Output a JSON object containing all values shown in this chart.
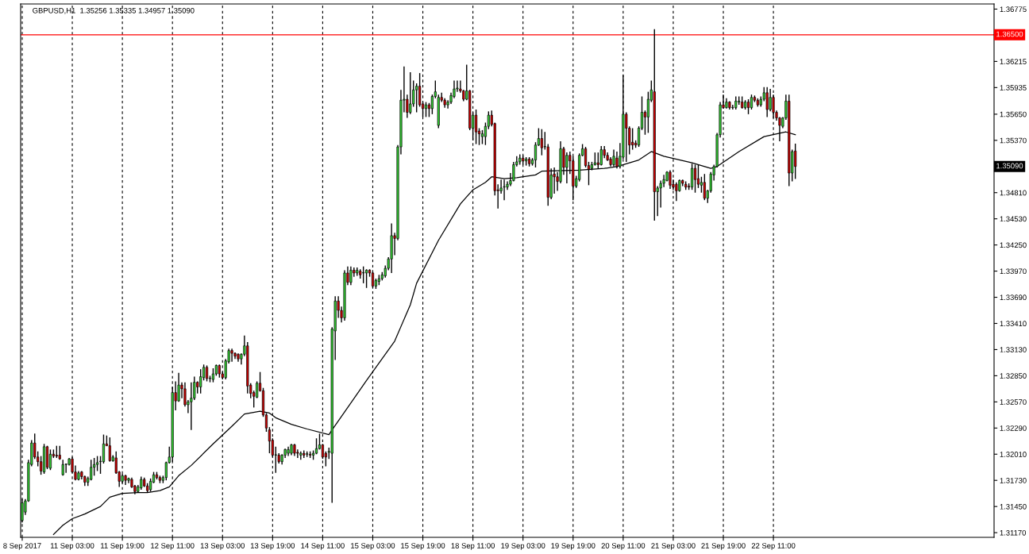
{
  "chart_data": {
    "type": "candlestick",
    "title": "GBPUSD,H1  1.35256 1.35335 1.34957 1.35090",
    "categories": [
      "8 Sep 2017",
      null,
      null,
      null,
      null,
      null,
      null,
      null,
      null,
      null,
      null,
      null,
      null,
      null,
      null,
      null,
      "11 Sep 03:00",
      null,
      null,
      null,
      null,
      null,
      null,
      null,
      null,
      null,
      null,
      null,
      null,
      null,
      null,
      null,
      "11 Sep 19:00",
      null,
      null,
      null,
      null,
      null,
      null,
      null,
      null,
      null,
      null,
      null,
      null,
      null,
      null,
      null,
      "12 Sep 11:00",
      null,
      null,
      null,
      null,
      null,
      null,
      null,
      null,
      null,
      null,
      null,
      null,
      null,
      null,
      null,
      "13 Sep 03:00",
      null,
      null,
      null,
      null,
      null,
      null,
      null,
      null,
      null,
      null,
      null,
      null,
      null,
      null,
      null,
      "13 Sep 19:00",
      null,
      null,
      null,
      null,
      null,
      null,
      null,
      null,
      null,
      null,
      null,
      null,
      null,
      null,
      null,
      "14 Sep 11:00",
      null,
      null,
      null,
      null,
      null,
      null,
      null,
      null,
      null,
      null,
      null,
      null,
      null,
      null,
      null,
      "15 Sep 03:00",
      null,
      null,
      null,
      null,
      null,
      null,
      null,
      null,
      null,
      null,
      null,
      null,
      null,
      null,
      null,
      "15 Sep 19:00",
      null,
      null,
      null,
      null,
      null,
      null,
      null,
      null,
      null,
      null,
      null,
      null,
      null,
      null,
      null,
      "18 Sep 11:00",
      null,
      null,
      null,
      null,
      null,
      null,
      null,
      null,
      null,
      null,
      null,
      null,
      null,
      null,
      null,
      "19 Sep 03:00",
      null,
      null,
      null,
      null,
      null,
      null,
      null,
      null,
      null,
      null,
      null,
      null,
      null,
      null,
      null,
      "19 Sep 19:00",
      null,
      null,
      null,
      null,
      null,
      null,
      null,
      null,
      null,
      null,
      null,
      null,
      null,
      null,
      null,
      "20 Sep 11:00",
      null,
      null,
      null,
      null,
      null,
      null,
      null,
      null,
      null,
      null,
      null,
      null,
      null,
      null,
      null,
      "21 Sep 03:00",
      null,
      null,
      null,
      null,
      null,
      null,
      null,
      null,
      null,
      null,
      null,
      null,
      null,
      null,
      null,
      "21 Sep 19:00",
      null,
      null,
      null,
      null,
      null,
      null,
      null,
      null,
      null,
      null,
      null,
      null,
      null,
      null,
      null,
      "22 Sep 11:00",
      null,
      null,
      null,
      null,
      null,
      null,
      null,
      null,
      null,
      null,
      null,
      null,
      null,
      null,
      null,
      null,
      null,
      null,
      null,
      null,
      null,
      null,
      null,
      null,
      null,
      null,
      null,
      null,
      null,
      null,
      null,
      null,
      null,
      null,
      null,
      null,
      null,
      null,
      null,
      null,
      null,
      null,
      null,
      null,
      null,
      null,
      null,
      null,
      null,
      null,
      null,
      null,
      null,
      null,
      null,
      null,
      null,
      null,
      null,
      null,
      null,
      null,
      null,
      null,
      null,
      null,
      null,
      null,
      null,
      null
    ],
    "ohlc": [
      [
        1.313,
        1.3153,
        1.3128,
        1.3149
      ],
      [
        1.3139,
        1.3153,
        1.3136,
        1.3151
      ],
      [
        1.3151,
        1.3195,
        1.315,
        1.3192
      ],
      [
        1.319,
        1.3216,
        1.3188,
        1.3213
      ],
      [
        1.3213,
        1.3223,
        1.3196,
        1.3198
      ],
      [
        1.3198,
        1.3204,
        1.3188,
        1.3193
      ],
      [
        1.3193,
        1.3199,
        1.3179,
        1.3183
      ],
      [
        1.3182,
        1.3212,
        1.318,
        1.3209
      ],
      [
        1.3209,
        1.321,
        1.3185,
        1.3187
      ],
      [
        1.3186,
        1.3206,
        1.3184,
        1.3201
      ],
      [
        1.3201,
        1.3206,
        1.3197,
        1.3199
      ],
      [
        1.32,
        1.321,
        1.3197,
        1.3199
      ],
      [
        1.32,
        1.321,
        1.3195,
        1.3196
      ],
      [
        1.3179,
        1.3195,
        1.3178,
        1.319
      ],
      [
        1.319,
        1.3191,
        1.3181,
        1.319
      ],
      [
        1.319,
        1.3197,
        1.3189,
        1.3196
      ],
      [
        1.3196,
        1.3198,
        1.3181,
        1.3182
      ],
      [
        1.3182,
        1.3189,
        1.3173,
        1.3174
      ],
      [
        1.3174,
        1.3183,
        1.3173,
        1.3181
      ],
      [
        1.3182,
        1.3183,
        1.3174,
        1.3177
      ],
      [
        1.3177,
        1.3178,
        1.3167,
        1.3171
      ],
      [
        1.3171,
        1.3177,
        1.3167,
        1.3175
      ],
      [
        1.3174,
        1.3195,
        1.3173,
        1.3187
      ],
      [
        1.3187,
        1.3197,
        1.3178,
        1.319
      ],
      [
        1.319,
        1.3199,
        1.3183,
        1.3192
      ],
      [
        1.3193,
        1.3199,
        1.318,
        1.3193
      ],
      [
        1.3193,
        1.3222,
        1.3191,
        1.3212
      ],
      [
        1.3212,
        1.3221,
        1.321,
        1.321
      ],
      [
        1.321,
        1.3219,
        1.3193,
        1.3194
      ],
      [
        1.3194,
        1.32,
        1.3193,
        1.3198
      ],
      [
        1.3197,
        1.3204,
        1.318,
        1.3181
      ],
      [
        1.3182,
        1.3183,
        1.3166,
        1.3172
      ],
      [
        1.3172,
        1.318,
        1.317,
        1.3178
      ],
      [
        1.3178,
        1.3179,
        1.3168,
        1.3173
      ],
      [
        1.3173,
        1.3176,
        1.317,
        1.3175
      ],
      [
        1.3174,
        1.3176,
        1.3165,
        1.3166
      ],
      [
        1.3167,
        1.3168,
        1.3158,
        1.3161
      ],
      [
        1.3161,
        1.3168,
        1.316,
        1.3166
      ],
      [
        1.3165,
        1.3177,
        1.3163,
        1.3174
      ],
      [
        1.3174,
        1.3176,
        1.3166,
        1.3167
      ],
      [
        1.3167,
        1.317,
        1.316,
        1.3162
      ],
      [
        1.3163,
        1.3175,
        1.3161,
        1.3172
      ],
      [
        1.3171,
        1.3182,
        1.317,
        1.3179
      ],
      [
        1.3179,
        1.3182,
        1.3174,
        1.3176
      ],
      [
        1.3176,
        1.3178,
        1.317,
        1.3173
      ],
      [
        1.3173,
        1.3178,
        1.317,
        1.3176
      ],
      [
        1.3176,
        1.3193,
        1.3173,
        1.3192
      ],
      [
        1.3192,
        1.3209,
        1.3191,
        1.3198
      ],
      [
        1.3198,
        1.3273,
        1.3193,
        1.3267
      ],
      [
        1.3267,
        1.3279,
        1.3248,
        1.3258
      ],
      [
        1.3258,
        1.3288,
        1.3257,
        1.3275
      ],
      [
        1.3275,
        1.3278,
        1.3261,
        1.3271
      ],
      [
        1.3271,
        1.3278,
        1.3252,
        1.3254
      ],
      [
        1.3254,
        1.3259,
        1.3245,
        1.3257
      ],
      [
        1.3257,
        1.3278,
        1.3227,
        1.3261
      ],
      [
        1.3261,
        1.3284,
        1.3259,
        1.3278
      ],
      [
        1.3278,
        1.3279,
        1.3266,
        1.3273
      ],
      [
        1.3273,
        1.3292,
        1.3266,
        1.3284
      ],
      [
        1.3283,
        1.3297,
        1.328,
        1.3294
      ],
      [
        1.3294,
        1.3296,
        1.3279,
        1.3282
      ],
      [
        1.3282,
        1.3285,
        1.3278,
        1.3282
      ],
      [
        1.3281,
        1.3293,
        1.3278,
        1.3287
      ],
      [
        1.3287,
        1.3297,
        1.3285,
        1.3296
      ],
      [
        1.3296,
        1.3297,
        1.3283,
        1.3287
      ],
      [
        1.3287,
        1.3289,
        1.3281,
        1.3283
      ],
      [
        1.3283,
        1.3303,
        1.3281,
        1.3301
      ],
      [
        1.33,
        1.3314,
        1.3298,
        1.3312
      ],
      [
        1.3312,
        1.3314,
        1.33,
        1.3309
      ],
      [
        1.3309,
        1.331,
        1.3303,
        1.3306
      ],
      [
        1.3308,
        1.3309,
        1.33,
        1.3303
      ],
      [
        1.3303,
        1.3309,
        1.3297,
        1.3308
      ],
      [
        1.3308,
        1.3328,
        1.3306,
        1.3317
      ],
      [
        1.3317,
        1.3321,
        1.3266,
        1.3274
      ],
      [
        1.3275,
        1.3277,
        1.3261,
        1.3266
      ],
      [
        1.3267,
        1.3269,
        1.3251,
        1.3263
      ],
      [
        1.3262,
        1.3279,
        1.3261,
        1.3277
      ],
      [
        1.3277,
        1.3289,
        1.3268,
        1.3269
      ],
      [
        1.3269,
        1.3272,
        1.3241,
        1.3243
      ],
      [
        1.3243,
        1.3245,
        1.3225,
        1.3229
      ],
      [
        1.3227,
        1.323,
        1.3202,
        1.3215
      ],
      [
        1.3216,
        1.3218,
        1.3198,
        1.32
      ],
      [
        1.32,
        1.3209,
        1.3181,
        1.32
      ],
      [
        1.32,
        1.3202,
        1.3191,
        1.3193
      ],
      [
        1.3193,
        1.3201,
        1.319,
        1.32
      ],
      [
        1.32,
        1.3207,
        1.3197,
        1.3206
      ],
      [
        1.3202,
        1.3209,
        1.3199,
        1.3206
      ],
      [
        1.3202,
        1.3212,
        1.32,
        1.3211
      ],
      [
        1.3211,
        1.3212,
        1.3199,
        1.3202
      ],
      [
        1.3203,
        1.3206,
        1.3197,
        1.3202
      ],
      [
        1.32,
        1.3204,
        1.3195,
        1.3202
      ],
      [
        1.3202,
        1.3205,
        1.3197,
        1.32
      ],
      [
        1.3201,
        1.3204,
        1.3198,
        1.3201
      ],
      [
        1.3201,
        1.3204,
        1.3197,
        1.32
      ],
      [
        1.32,
        1.3205,
        1.3195,
        1.3202
      ],
      [
        1.3202,
        1.3218,
        1.3201,
        1.3207
      ],
      [
        1.3207,
        1.3223,
        1.3206,
        1.3211
      ],
      [
        1.3211,
        1.3212,
        1.3196,
        1.3198
      ],
      [
        1.3202,
        1.3204,
        1.3188,
        1.3198
      ],
      [
        1.3203,
        1.3208,
        1.3196,
        1.3204
      ],
      [
        1.3202,
        1.3337,
        1.3149,
        1.3335
      ],
      [
        1.3333,
        1.337,
        1.3302,
        1.3365
      ],
      [
        1.3365,
        1.337,
        1.3347,
        1.3355
      ],
      [
        1.3355,
        1.3359,
        1.3342,
        1.3347
      ],
      [
        1.3347,
        1.3398,
        1.3344,
        1.3395
      ],
      [
        1.3395,
        1.3402,
        1.3382,
        1.3385
      ],
      [
        1.3385,
        1.3402,
        1.3382,
        1.3398
      ],
      [
        1.3398,
        1.3401,
        1.3391,
        1.3395
      ],
      [
        1.3395,
        1.3401,
        1.3392,
        1.3398
      ],
      [
        1.3397,
        1.3399,
        1.3389,
        1.3393
      ],
      [
        1.3395,
        1.3402,
        1.3384,
        1.3395
      ],
      [
        1.3395,
        1.3399,
        1.3379,
        1.3398
      ],
      [
        1.3398,
        1.3399,
        1.3391,
        1.3395
      ],
      [
        1.3395,
        1.3396,
        1.3379,
        1.3381
      ],
      [
        1.3381,
        1.3389,
        1.3378,
        1.3387
      ],
      [
        1.3386,
        1.3393,
        1.3382,
        1.3389
      ],
      [
        1.3389,
        1.3396,
        1.3387,
        1.3393
      ],
      [
        1.3392,
        1.3403,
        1.339,
        1.34
      ],
      [
        1.34,
        1.3412,
        1.3398,
        1.341
      ],
      [
        1.341,
        1.3448,
        1.3395,
        1.3435
      ],
      [
        1.3435,
        1.3438,
        1.3414,
        1.3432
      ],
      [
        1.3432,
        1.3532,
        1.343,
        1.353
      ],
      [
        1.353,
        1.3591,
        1.3522,
        1.358
      ],
      [
        1.358,
        1.3616,
        1.3567,
        1.3581
      ],
      [
        1.3581,
        1.3586,
        1.3561,
        1.3567
      ],
      [
        1.3567,
        1.361,
        1.3565,
        1.3576
      ],
      [
        1.3576,
        1.3601,
        1.3573,
        1.3591
      ],
      [
        1.3591,
        1.3598,
        1.3567,
        1.3595
      ],
      [
        1.3595,
        1.3609,
        1.3573,
        1.3575
      ],
      [
        1.3576,
        1.3578,
        1.3562,
        1.3571
      ],
      [
        1.3571,
        1.3578,
        1.3562,
        1.3575
      ],
      [
        1.3575,
        1.3577,
        1.3562,
        1.3571
      ],
      [
        1.3571,
        1.3586,
        1.3565,
        1.3584
      ],
      [
        1.3584,
        1.3601,
        1.3582,
        1.3589
      ],
      [
        1.3553,
        1.3586,
        1.355,
        1.3583
      ],
      [
        1.3583,
        1.3588,
        1.3578,
        1.358
      ],
      [
        1.358,
        1.3582,
        1.3572,
        1.3575
      ],
      [
        1.3575,
        1.358,
        1.3571,
        1.3578
      ],
      [
        1.3578,
        1.3588,
        1.3576,
        1.3585
      ],
      [
        1.3584,
        1.3601,
        1.3582,
        1.3592
      ],
      [
        1.3592,
        1.3601,
        1.3589,
        1.3593
      ],
      [
        1.3592,
        1.3601,
        1.3588,
        1.359
      ],
      [
        1.359,
        1.3591,
        1.3579,
        1.3581
      ],
      [
        1.3581,
        1.3618,
        1.358,
        1.359
      ],
      [
        1.359,
        1.3591,
        1.3548,
        1.355
      ],
      [
        1.355,
        1.3567,
        1.3537,
        1.3564
      ],
      [
        1.3564,
        1.357,
        1.3533,
        1.3546
      ],
      [
        1.3547,
        1.355,
        1.3532,
        1.3544
      ],
      [
        1.3541,
        1.3548,
        1.3533,
        1.3544
      ],
      [
        1.3541,
        1.3556,
        1.3532,
        1.3552
      ],
      [
        1.3552,
        1.3568,
        1.3549,
        1.3564
      ],
      [
        1.3564,
        1.3569,
        1.3552,
        1.3554
      ],
      [
        1.3555,
        1.3556,
        1.3478,
        1.3483
      ],
      [
        1.3484,
        1.349,
        1.3464,
        1.3483
      ],
      [
        1.3483,
        1.3495,
        1.348,
        1.3486
      ],
      [
        1.3487,
        1.3495,
        1.3473,
        1.3487
      ],
      [
        1.3487,
        1.3493,
        1.3484,
        1.349
      ],
      [
        1.349,
        1.3502,
        1.3488,
        1.3494
      ],
      [
        1.3494,
        1.3514,
        1.3493,
        1.3511
      ],
      [
        1.3511,
        1.352,
        1.3509,
        1.3514
      ],
      [
        1.3514,
        1.3522,
        1.3511,
        1.3518
      ],
      [
        1.3518,
        1.3521,
        1.3511,
        1.3515
      ],
      [
        1.3515,
        1.3519,
        1.351,
        1.3517
      ],
      [
        1.3517,
        1.3519,
        1.3509,
        1.3512
      ],
      [
        1.3512,
        1.3518,
        1.351,
        1.3516
      ],
      [
        1.3516,
        1.3535,
        1.3508,
        1.3532
      ],
      [
        1.3532,
        1.355,
        1.3531,
        1.3539
      ],
      [
        1.3539,
        1.3549,
        1.3521,
        1.3529
      ],
      [
        1.353,
        1.3546,
        1.3527,
        1.353
      ],
      [
        1.353,
        1.3533,
        1.3467,
        1.3476
      ],
      [
        1.3476,
        1.3507,
        1.3474,
        1.35
      ],
      [
        1.3501,
        1.3508,
        1.348,
        1.3498
      ],
      [
        1.3498,
        1.3503,
        1.3483,
        1.3493
      ],
      [
        1.3493,
        1.3536,
        1.3491,
        1.3528
      ],
      [
        1.3528,
        1.353,
        1.35,
        1.3508
      ],
      [
        1.3508,
        1.3524,
        1.3491,
        1.3521
      ],
      [
        1.3521,
        1.3525,
        1.3501,
        1.3515
      ],
      [
        1.3515,
        1.352,
        1.3473,
        1.3488
      ],
      [
        1.3488,
        1.3499,
        1.3486,
        1.3496
      ],
      [
        1.3495,
        1.3523,
        1.3493,
        1.3521
      ],
      [
        1.3521,
        1.3533,
        1.352,
        1.3528
      ],
      [
        1.3528,
        1.353,
        1.3508,
        1.351
      ],
      [
        1.351,
        1.3514,
        1.3489,
        1.3506
      ],
      [
        1.3507,
        1.3514,
        1.3505,
        1.3511
      ],
      [
        1.3511,
        1.3524,
        1.351,
        1.3513
      ],
      [
        1.3513,
        1.3524,
        1.3507,
        1.3511
      ],
      [
        1.3511,
        1.3531,
        1.351,
        1.3527
      ],
      [
        1.3527,
        1.3531,
        1.3518,
        1.3521
      ],
      [
        1.3521,
        1.3524,
        1.3515,
        1.3516
      ],
      [
        1.3517,
        1.3519,
        1.3509,
        1.3511
      ],
      [
        1.3511,
        1.3527,
        1.3509,
        1.352
      ],
      [
        1.3518,
        1.3525,
        1.3507,
        1.3509
      ],
      [
        1.3509,
        1.3534,
        1.3507,
        1.352
      ],
      [
        1.3519,
        1.3607,
        1.3517,
        1.3565
      ],
      [
        1.3565,
        1.3567,
        1.3514,
        1.355
      ],
      [
        1.355,
        1.3552,
        1.3522,
        1.3532
      ],
      [
        1.3535,
        1.355,
        1.3527,
        1.3532
      ],
      [
        1.3534,
        1.3537,
        1.3529,
        1.3532
      ],
      [
        1.3532,
        1.3552,
        1.353,
        1.355
      ],
      [
        1.355,
        1.3584,
        1.3548,
        1.3567
      ],
      [
        1.3567,
        1.3569,
        1.3543,
        1.3562
      ],
      [
        1.3562,
        1.3589,
        1.3545,
        1.3581
      ],
      [
        1.358,
        1.3601,
        1.3578,
        1.3591
      ],
      [
        1.3589,
        1.3656,
        1.3451,
        1.3482
      ],
      [
        1.3482,
        1.3488,
        1.3456,
        1.3486
      ],
      [
        1.3486,
        1.3494,
        1.3465,
        1.3491
      ],
      [
        1.3491,
        1.35,
        1.3487,
        1.3495
      ],
      [
        1.3494,
        1.3504,
        1.3493,
        1.3503
      ],
      [
        1.3503,
        1.3505,
        1.3485,
        1.3489
      ],
      [
        1.349,
        1.3495,
        1.3484,
        1.3487
      ],
      [
        1.349,
        1.3492,
        1.3472,
        1.3483
      ],
      [
        1.3483,
        1.3495,
        1.3482,
        1.3494
      ],
      [
        1.3494,
        1.3495,
        1.3488,
        1.3491
      ],
      [
        1.349,
        1.3493,
        1.3484,
        1.3487
      ],
      [
        1.3488,
        1.3491,
        1.3484,
        1.3487
      ],
      [
        1.3487,
        1.3512,
        1.3484,
        1.3507
      ],
      [
        1.3507,
        1.3511,
        1.3481,
        1.3495
      ],
      [
        1.3496,
        1.3511,
        1.3486,
        1.349
      ],
      [
        1.3489,
        1.3498,
        1.3481,
        1.3492
      ],
      [
        1.3492,
        1.3501,
        1.3473,
        1.3475
      ],
      [
        1.3475,
        1.3484,
        1.347,
        1.3483
      ],
      [
        1.3483,
        1.3503,
        1.3481,
        1.3501
      ],
      [
        1.35,
        1.3511,
        1.3494,
        1.3509
      ],
      [
        1.3509,
        1.3545,
        1.3508,
        1.3543
      ],
      [
        1.3543,
        1.3578,
        1.354,
        1.3575
      ],
      [
        1.3575,
        1.3586,
        1.3571,
        1.3572
      ],
      [
        1.3572,
        1.3582,
        1.3571,
        1.3578
      ],
      [
        1.3578,
        1.3579,
        1.357,
        1.3572
      ],
      [
        1.3572,
        1.3575,
        1.357,
        1.3572
      ],
      [
        1.3572,
        1.3584,
        1.357,
        1.3579
      ],
      [
        1.3578,
        1.3584,
        1.3575,
        1.3579
      ],
      [
        1.3578,
        1.3584,
        1.3571,
        1.3572
      ],
      [
        1.3572,
        1.358,
        1.357,
        1.3578
      ],
      [
        1.3578,
        1.3581,
        1.3565,
        1.3572
      ],
      [
        1.3572,
        1.3586,
        1.357,
        1.3583
      ],
      [
        1.3583,
        1.3585,
        1.3578,
        1.358
      ],
      [
        1.358,
        1.3582,
        1.3573,
        1.3575
      ],
      [
        1.3575,
        1.3584,
        1.3573,
        1.3581
      ],
      [
        1.3581,
        1.3594,
        1.3579,
        1.3588
      ],
      [
        1.3588,
        1.3594,
        1.3562,
        1.357
      ],
      [
        1.357,
        1.3592,
        1.3568,
        1.3583
      ],
      [
        1.3583,
        1.3586,
        1.3561,
        1.3567
      ],
      [
        1.3567,
        1.3569,
        1.3558,
        1.3561
      ],
      [
        1.3561,
        1.3562,
        1.3536,
        1.3553
      ],
      [
        1.3552,
        1.3562,
        1.355,
        1.3561
      ],
      [
        1.3561,
        1.3586,
        1.3559,
        1.3579
      ],
      [
        1.3579,
        1.3586,
        1.3488,
        1.3502
      ],
      [
        1.3502,
        1.3527,
        1.3493,
        1.3525
      ],
      [
        1.35256,
        1.35335,
        1.34957,
        1.3509
      ],
      null,
      null,
      null,
      null,
      null,
      null,
      null,
      null,
      null,
      null,
      null,
      null,
      null,
      null,
      null,
      null,
      null,
      null,
      null,
      null,
      null,
      null,
      null,
      null,
      null,
      null,
      null,
      null,
      null,
      null,
      null,
      null,
      null,
      null,
      null,
      null,
      null,
      null,
      null,
      null,
      null,
      null,
      null,
      null,
      null,
      null,
      null,
      null,
      null,
      null,
      null,
      null,
      null,
      null,
      null,
      null,
      null,
      null,
      null,
      null,
      null,
      null,
      null
    ],
    "colors": [
      "#33cc33",
      "#33cc33",
      "#33cc33",
      "#33cc33",
      "#cc0000",
      "#cc0000",
      "#cc0000",
      "#33cc33",
      "#cc0000",
      "#33cc33",
      "#cc0000",
      "#cc0000",
      "#cc0000",
      "#33cc33",
      "#33cc33",
      "#33cc33",
      "#cc0000",
      "#cc0000",
      "#33cc33",
      "#cc0000",
      "#cc0000",
      "#33cc33",
      "#33cc33",
      "#33cc33",
      "#33cc33",
      "#33cc33",
      "#33cc33",
      "#cc0000",
      "#cc0000",
      "#33cc33",
      "#cc0000",
      "#cc0000",
      "#33cc33",
      "#cc0000",
      "#33cc33",
      "#cc0000",
      "#cc0000",
      "#33cc33",
      "#33cc33",
      "#cc0000",
      "#cc0000",
      "#33cc33",
      "#33cc33",
      "#cc0000",
      "#cc0000",
      "#33cc33",
      "#33cc33",
      "#33cc33",
      "#33cc33",
      "#cc0000",
      "#33cc33",
      "#cc0000",
      "#cc0000",
      "#33cc33",
      "#33cc33",
      "#33cc33",
      "#cc0000",
      "#33cc33",
      "#33cc33",
      "#cc0000",
      "#33cc33",
      "#33cc33",
      "#33cc33",
      "#cc0000",
      "#cc0000",
      "#33cc33",
      "#33cc33",
      "#cc0000",
      "#cc0000",
      "#cc0000",
      "#33cc33",
      "#33cc33",
      "#cc0000",
      "#cc0000",
      "#cc0000",
      "#33cc33",
      "#cc0000",
      "#cc0000",
      "#cc0000",
      "#cc0000",
      "#cc0000",
      "#33cc33",
      "#cc0000",
      "#33cc33",
      "#33cc33",
      "#33cc33",
      "#33cc33",
      "#cc0000",
      "#cc0000",
      "#33cc33",
      "#cc0000",
      "#33cc33",
      "#cc0000",
      "#33cc33",
      "#33cc33",
      "#33cc33",
      "#cc0000",
      "#cc0000",
      "#33cc33",
      "#33cc33",
      "#33cc33",
      "#cc0000",
      "#cc0000",
      "#33cc33",
      "#cc0000",
      "#33cc33",
      "#cc0000",
      "#33cc33",
      "#cc0000",
      "#33cc33",
      "#33cc33",
      "#cc0000",
      "#cc0000",
      "#33cc33",
      "#33cc33",
      "#33cc33",
      "#33cc33",
      "#33cc33",
      "#33cc33",
      "#cc0000",
      "#33cc33",
      "#33cc33",
      "#33cc33",
      "#cc0000",
      "#33cc33",
      "#33cc33",
      "#33cc33",
      "#cc0000",
      "#cc0000",
      "#33cc33",
      "#cc0000",
      "#33cc33",
      "#33cc33",
      "#33cc33",
      "#cc0000",
      "#cc0000",
      "#33cc33",
      "#33cc33",
      "#33cc33",
      "#33cc33",
      "#cc0000",
      "#cc0000",
      "#33cc33",
      "#cc0000",
      "#33cc33",
      "#cc0000",
      "#cc0000",
      "#33cc33",
      "#33cc33",
      "#33cc33",
      "#cc0000",
      "#cc0000",
      "#cc0000",
      "#33cc33",
      "#33cc33",
      "#33cc33",
      "#33cc33",
      "#33cc33",
      "#33cc33",
      "#33cc33",
      "#cc0000",
      "#33cc33",
      "#cc0000",
      "#33cc33",
      "#33cc33",
      "#33cc33",
      "#cc0000",
      "#33cc33",
      "#cc0000",
      "#33cc33",
      "#cc0000",
      "#cc0000",
      "#33cc33",
      "#cc0000",
      "#33cc33",
      "#cc0000",
      "#cc0000",
      "#33cc33",
      "#33cc33",
      "#33cc33",
      "#cc0000",
      "#cc0000",
      "#33cc33",
      "#33cc33",
      "#cc0000",
      "#33cc33",
      "#cc0000",
      "#cc0000",
      "#cc0000",
      "#33cc33",
      "#cc0000",
      "#33cc33",
      "#33cc33",
      "#cc0000",
      "#cc0000",
      "#cc0000",
      "#cc0000",
      "#33cc33",
      "#33cc33",
      "#cc0000",
      "#33cc33",
      "#33cc33",
      "#cc0000",
      "#33cc33",
      "#33cc33",
      "#33cc33",
      "#33cc33",
      "#cc0000",
      "#cc0000",
      "#cc0000",
      "#33cc33",
      "#cc0000",
      "#cc0000",
      "#cc0000",
      "#33cc33",
      "#cc0000",
      "#cc0000",
      "#33cc33",
      "#cc0000",
      "#33cc33",
      "#33cc33",
      "#33cc33",
      "#33cc33",
      "#33cc33",
      "#cc0000",
      "#33cc33",
      "#cc0000",
      "#33cc33",
      "#33cc33",
      "#33cc33",
      "#cc0000",
      "#33cc33",
      "#cc0000",
      "#33cc33",
      "#cc0000",
      "#cc0000",
      "#33cc33",
      "#33cc33",
      "#cc0000",
      "#33cc33",
      "#cc0000",
      "#cc0000",
      "#cc0000",
      "#33cc33",
      "#33cc33",
      "#cc0000",
      "#33cc33",
      "#cc0000",
      null,
      null,
      null,
      null,
      null,
      null,
      null,
      null,
      null,
      null,
      null,
      null,
      null,
      null,
      null,
      null,
      null,
      null,
      null,
      null,
      null,
      null,
      null,
      null,
      null,
      null,
      null,
      null,
      null,
      null,
      null,
      null,
      null,
      null,
      null,
      null,
      null,
      null,
      null,
      null,
      null,
      null,
      null,
      null,
      null,
      null,
      null,
      null,
      null,
      null,
      null,
      null,
      null,
      null,
      null,
      null,
      null,
      null,
      null,
      null,
      null,
      null,
      null
    ],
    "series": [
      {
        "type": "line",
        "color": "#000000",
        "values": [
          null,
          null,
          null,
          null,
          null,
          null,
          null,
          null,
          null,
          null,
          1.3115,
          null,
          null,
          1.3125,
          null,
          null,
          1.3132,
          null,
          null,
          null,
          1.3137,
          null,
          null,
          null,
          null,
          1.3145,
          null,
          null,
          1.3155,
          null,
          null,
          null,
          1.3159,
          null,
          null,
          null,
          null,
          1.316,
          null,
          null,
          1.316,
          null,
          null,
          null,
          1.3162,
          null,
          null,
          1.3166,
          null,
          null,
          1.3178,
          null,
          null,
          null,
          1.3189,
          null,
          null,
          null,
          null,
          null,
          null,
          1.3212,
          null,
          null,
          null,
          null,
          null,
          1.3231,
          null,
          null,
          null,
          1.3244,
          null,
          null,
          null,
          null,
          1.3247,
          null,
          null,
          1.3245,
          null,
          1.324,
          null,
          null,
          null,
          null,
          1.3233,
          null,
          null,
          null,
          null,
          1.3228,
          null,
          null,
          null,
          null,
          null,
          null,
          1.3222,
          1.3227,
          null,
          null,
          null,
          null,
          1.3251,
          null,
          null,
          null,
          null,
          null,
          1.328,
          null,
          null,
          null,
          null,
          null,
          null,
          null,
          null,
          1.3322,
          null,
          null,
          null,
          null,
          1.3361,
          null,
          1.3384,
          null,
          null,
          null,
          null,
          null,
          null,
          1.343,
          null,
          null,
          null,
          null,
          null,
          null,
          1.3469,
          null,
          null,
          null,
          1.3484,
          null,
          null,
          null,
          1.3492,
          null,
          1.3498,
          null,
          null,
          null,
          1.3496,
          null,
          null,
          null,
          1.3497,
          null,
          null,
          null,
          null,
          null,
          1.35,
          null,
          1.3504,
          null,
          null,
          null,
          null,
          null,
          null,
          null,
          null,
          null,
          null,
          null,
          1.3505,
          null,
          null,
          null,
          null,
          null,
          null,
          null,
          1.3507,
          null,
          null,
          null,
          1.3509,
          null,
          null,
          null,
          null,
          null,
          null,
          1.3516,
          null,
          null,
          null,
          1.3525,
          null,
          null,
          null,
          1.352,
          null,
          null,
          null,
          null,
          null,
          null,
          null,
          null,
          1.3513,
          null,
          null,
          null,
          null,
          null,
          1.3507,
          null,
          1.3509,
          null,
          null,
          null,
          null,
          null,
          null,
          1.3525,
          null,
          null,
          null,
          null,
          null,
          null,
          null,
          1.3541,
          null,
          null,
          null,
          null,
          null,
          null,
          1.3546,
          null,
          null,
          1.3543,
          null,
          null,
          null,
          null,
          null,
          null,
          null,
          null,
          null,
          null,
          null,
          null,
          null,
          null,
          null,
          null,
          null,
          null,
          null,
          null,
          null,
          null,
          null,
          null,
          null,
          null,
          null,
          null,
          null,
          null,
          null,
          null,
          null,
          null,
          null,
          null,
          null,
          null,
          null,
          null,
          null,
          null,
          null,
          null,
          null,
          null,
          null,
          null,
          null,
          null,
          null,
          null,
          null,
          null,
          null,
          null,
          null,
          null,
          null,
          null,
          null,
          null,
          null
        ]
      }
    ],
    "ylim": [
      1.3112,
      1.3683
    ],
    "yticks": [
      {
        "value": 1.3117,
        "label": "1.31170"
      },
      {
        "value": 1.3145,
        "label": "1.31450"
      },
      {
        "value": 1.3173,
        "label": "1.31730"
      },
      {
        "value": 1.3201,
        "label": "1.32010"
      },
      {
        "value": 1.3229,
        "label": "1.32290"
      },
      {
        "value": 1.3257,
        "label": "1.32570"
      },
      {
        "value": 1.3285,
        "label": "1.32850"
      },
      {
        "value": 1.3313,
        "label": "1.33130"
      },
      {
        "value": 1.3341,
        "label": "1.33410"
      },
      {
        "value": 1.3369,
        "label": "1.33690"
      },
      {
        "value": 1.3397,
        "label": "1.33970"
      },
      {
        "value": 1.3425,
        "label": "1.34250"
      },
      {
        "value": 1.3453,
        "label": "1.34530"
      },
      {
        "value": 1.3481,
        "label": "1.34810"
      },
      {
        "value": 1.3537,
        "label": "1.35370"
      },
      {
        "value": 1.3565,
        "label": "1.35650"
      },
      {
        "value": 1.35935,
        "label": "1.35935"
      },
      {
        "value": 1.36215,
        "label": "1.36215"
      },
      {
        "value": 1.36775,
        "label": "1.36775"
      }
    ],
    "ref_lines": [
      {
        "axis": "y",
        "value": 1.365,
        "label": "1.36500",
        "color": "#ff0000"
      }
    ],
    "annotations": [
      "1.35090"
    ],
    "grid": "x"
  }
}
